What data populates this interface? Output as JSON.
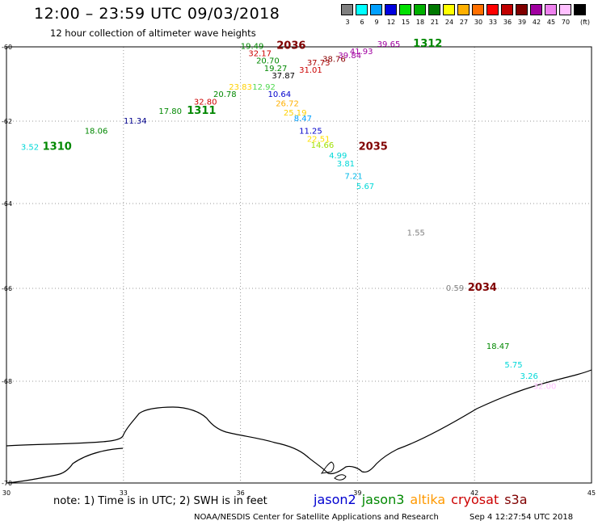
{
  "header": {
    "title": "12:00 – 23:59 UTC 09/03/2018",
    "subtitle": "12 hour collection of altimeter wave heights"
  },
  "scale": {
    "unit_label": "(ft)",
    "bins": [
      {
        "label": "3",
        "color": "#808080"
      },
      {
        "label": "6",
        "color": "#00ffff"
      },
      {
        "label": "9",
        "color": "#00a0ff"
      },
      {
        "label": "12",
        "color": "#0000e0"
      },
      {
        "label": "15",
        "color": "#00e000"
      },
      {
        "label": "18",
        "color": "#00b000"
      },
      {
        "label": "21",
        "color": "#007800"
      },
      {
        "label": "24",
        "color": "#ffff00"
      },
      {
        "label": "27",
        "color": "#ffb000"
      },
      {
        "label": "30",
        "color": "#ff7000"
      },
      {
        "label": "33",
        "color": "#ff0000"
      },
      {
        "label": "36",
        "color": "#c00000"
      },
      {
        "label": "39",
        "color": "#800000"
      },
      {
        "label": "42",
        "color": "#a000a0"
      },
      {
        "label": "45",
        "color": "#ee82ee"
      },
      {
        "label": "70",
        "color": "#ffc0ff"
      },
      {
        "label": "",
        "color": "#000000"
      }
    ]
  },
  "map": {
    "lon_range": [
      30,
      45
    ],
    "lat_range": [
      -70,
      -60
    ],
    "grid": "dotted",
    "x_ticks": [
      "30",
      "33",
      "36",
      "39",
      "42",
      "45"
    ],
    "y_ticks": [
      "-60",
      "-62",
      "-64",
      "-66",
      "-68",
      "-70"
    ],
    "coast_color": "#000000"
  },
  "observations": [
    {
      "value": "3.52",
      "color": "#00d8d8",
      "lon": 30.6,
      "lat": -62.7
    },
    {
      "value": "18.06",
      "color": "#008800",
      "lon": 32.3,
      "lat": -62.3
    },
    {
      "value": "11.34",
      "color": "#00008c",
      "lon": 33.3,
      "lat": -62.06
    },
    {
      "value": "17.80",
      "color": "#008800",
      "lon": 34.2,
      "lat": -61.8
    },
    {
      "value": "32.80",
      "color": "#cc0000",
      "lon": 35.1,
      "lat": -61.55
    },
    {
      "value": "20.78",
      "color": "#008800",
      "lon": 35.6,
      "lat": -61.35
    },
    {
      "value": "23.83",
      "color": "#ffd000",
      "lon": 36.0,
      "lat": -61.15
    },
    {
      "value": "12.92",
      "color": "#50d850",
      "lon": 36.6,
      "lat": -61.15
    },
    {
      "value": "10.64",
      "color": "#0000cc",
      "lon": 37.0,
      "lat": -61.35
    },
    {
      "value": "26.72",
      "color": "#ffb000",
      "lon": 37.2,
      "lat": -61.6
    },
    {
      "value": "25.19",
      "color": "#ffd000",
      "lon": 37.4,
      "lat": -61.85
    },
    {
      "value": "8.47",
      "color": "#00a0ff",
      "lon": 37.6,
      "lat": -62.0
    },
    {
      "value": "11.25",
      "color": "#0000cc",
      "lon": 37.8,
      "lat": -62.3
    },
    {
      "value": "22.51",
      "color": "#ffe000",
      "lon": 38.0,
      "lat": -62.5
    },
    {
      "value": "14.66",
      "color": "#a0e000",
      "lon": 38.1,
      "lat": -62.65
    },
    {
      "value": "4.99",
      "color": "#00d8d8",
      "lon": 38.5,
      "lat": -62.9
    },
    {
      "value": "3.81",
      "color": "#00d8d8",
      "lon": 38.7,
      "lat": -63.1
    },
    {
      "value": "7.21",
      "color": "#00b8e8",
      "lon": 38.9,
      "lat": -63.4
    },
    {
      "value": "5.67",
      "color": "#00d8d8",
      "lon": 39.2,
      "lat": -63.65
    },
    {
      "value": "19.49",
      "color": "#008800",
      "lon": 36.3,
      "lat": -60.05
    },
    {
      "value": "32.17",
      "color": "#cc0000",
      "lon": 36.5,
      "lat": -60.25
    },
    {
      "value": "20.70",
      "color": "#008800",
      "lon": 36.7,
      "lat": -60.45
    },
    {
      "value": "19.27",
      "color": "#008800",
      "lon": 36.9,
      "lat": -60.65
    },
    {
      "value": "37.87",
      "color": "#000000",
      "lon": 37.1,
      "lat": -60.85
    },
    {
      "value": "31.01",
      "color": "#cc0000",
      "lon": 37.8,
      "lat": -60.7
    },
    {
      "value": "37.73",
      "color": "#aa0000",
      "lon": 38.0,
      "lat": -60.5
    },
    {
      "value": "38.76",
      "color": "#880000",
      "lon": 38.4,
      "lat": -60.4
    },
    {
      "value": "39.84",
      "color": "#a000a0",
      "lon": 38.8,
      "lat": -60.3
    },
    {
      "value": "41.93",
      "color": "#a000a0",
      "lon": 39.1,
      "lat": -60.2
    },
    {
      "value": "39.65",
      "color": "#a000a0",
      "lon": 39.8,
      "lat": -60.0
    },
    {
      "value": "1.55",
      "color": "#808080",
      "lon": 40.5,
      "lat": -64.75
    },
    {
      "value": "0.59",
      "color": "#808080",
      "lon": 41.5,
      "lat": -66.05
    },
    {
      "value": "18.47",
      "color": "#008800",
      "lon": 42.6,
      "lat": -67.3
    },
    {
      "value": "5.75",
      "color": "#00d8d8",
      "lon": 43.0,
      "lat": -67.7
    },
    {
      "value": "3.26",
      "color": "#00d8d8",
      "lon": 43.4,
      "lat": -67.95
    },
    {
      "value": "32.00",
      "color": "#ffc0ff",
      "lon": 43.8,
      "lat": -68.15
    }
  ],
  "passes": [
    {
      "time": "1310",
      "color": "#008800",
      "lon": 31.3,
      "lat": -62.7
    },
    {
      "time": "1311",
      "color": "#008800",
      "lon": 35.0,
      "lat": -61.8
    },
    {
      "time": "2036",
      "color": "#800000",
      "lon": 37.3,
      "lat": -60.05
    },
    {
      "time": "1312",
      "color": "#008800",
      "lon": 40.8,
      "lat": -60.0
    },
    {
      "time": "2035",
      "color": "#800000",
      "lon": 39.4,
      "lat": -62.7
    },
    {
      "time": "2034",
      "color": "#800000",
      "lon": 42.2,
      "lat": -66.05
    }
  ],
  "footer": {
    "note": "note: 1) Time is in UTC; 2) SWH is in feet",
    "sensors": [
      {
        "name": "jason2",
        "color": "#0000d0"
      },
      {
        "name": "jason3",
        "color": "#008800"
      },
      {
        "name": "altika",
        "color": "#ff9900"
      },
      {
        "name": "cryosat",
        "color": "#cc0000"
      },
      {
        "name": "s3a",
        "color": "#800000"
      }
    ],
    "credit": "NOAA/NESDIS Center for Satellite Applications and Research",
    "timestamp": "Sep  4 12:27:54 UTC 2018"
  }
}
